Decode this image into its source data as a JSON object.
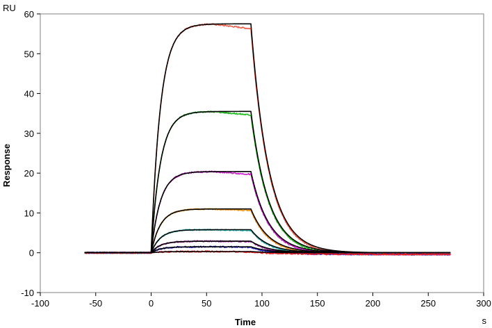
{
  "chart_data": {
    "type": "line",
    "title": "",
    "xlabel": "Time",
    "ylabel": "Response",
    "x_unit": "s",
    "y_unit": "RU",
    "xlim": [
      -100,
      300
    ],
    "ylim": [
      -10,
      60
    ],
    "x_ticks": [
      -100,
      -50,
      0,
      50,
      100,
      150,
      200,
      250,
      300
    ],
    "y_ticks": [
      -10,
      0,
      10,
      20,
      30,
      40,
      50,
      60
    ],
    "grid": false,
    "legend": "none",
    "model": {
      "x_start": -60,
      "association_start": 0,
      "dissociation_start": 90,
      "x_end": 270,
      "association_rate": 0.12,
      "dissociation_rate": 0.062
    },
    "series": [
      {
        "color": "#f0604a",
        "plateau": 57.5,
        "end_of_association": 56.3
      },
      {
        "color": "#22bb22",
        "plateau": 35.5,
        "end_of_association": 34.6
      },
      {
        "color": "#cc22cc",
        "plateau": 20.4,
        "end_of_association": 19.7
      },
      {
        "color": "#ee9922",
        "plateau": 11.0,
        "end_of_association": 10.6
      },
      {
        "color": "#22bbbb",
        "plateau": 5.8,
        "end_of_association": 5.6
      },
      {
        "color": "#aa33aa",
        "plateau": 2.9,
        "end_of_association": 2.8
      },
      {
        "color": "#2222cc",
        "plateau": 1.5,
        "end_of_association": 1.4
      },
      {
        "color": "#ee2222",
        "plateau": 0.3,
        "end_of_association": 0.2
      }
    ],
    "fit_color": "#000000"
  }
}
